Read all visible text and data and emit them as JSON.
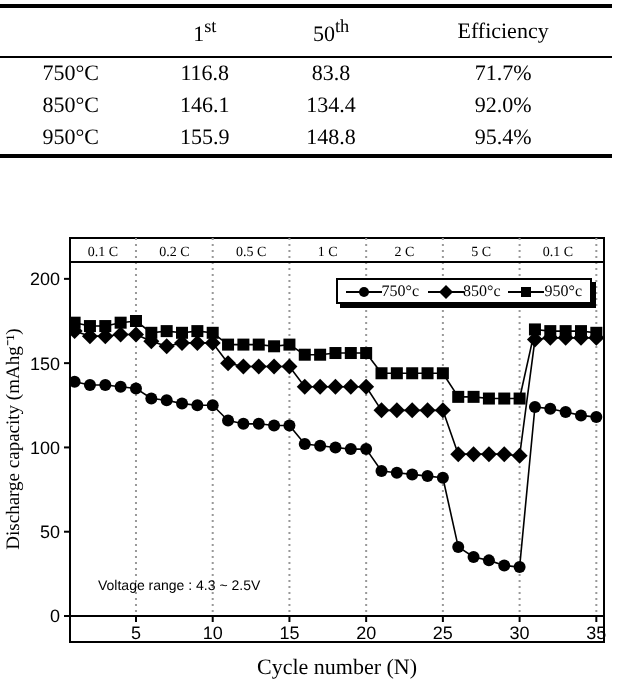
{
  "chart_data": [
    {
      "type": "other",
      "categories": [
        "1$^{st}$",
        "50$^{th}$",
        "Efficiency"
      ],
      "y_categories": [
        "750°C",
        "850°C",
        "950°C"
      ],
      "cell_labels": [
        [
          "116.8",
          "83.8",
          "71.7%"
        ],
        [
          "146.1",
          "134.4",
          "92.0%"
        ],
        [
          "155.9",
          "148.8",
          "95.4%"
        ]
      ]
    },
    {
      "type": "line",
      "xlabel": "Cycle number (N)",
      "ylabel": "Discharge capacity (mAhg⁻¹)",
      "x": [
        1,
        2,
        3,
        4,
        5,
        6,
        7,
        8,
        9,
        10,
        11,
        12,
        13,
        14,
        15,
        16,
        17,
        18,
        19,
        20,
        21,
        22,
        23,
        24,
        25,
        26,
        27,
        28,
        29,
        30,
        31,
        32,
        33,
        34,
        35
      ],
      "series": [
        {
          "name": "750°c",
          "color": "#000000",
          "marker": "circle",
          "values": [
            139,
            137,
            137,
            136,
            135,
            129,
            128,
            126,
            125,
            125,
            116,
            114,
            114,
            113,
            113,
            102,
            101,
            100,
            99,
            99,
            86,
            85,
            84,
            83,
            82,
            41,
            35,
            33,
            30,
            29,
            124,
            123,
            121,
            119,
            118
          ]
        },
        {
          "name": "850°c",
          "color": "#000000",
          "marker": "diamond",
          "values": [
            169,
            166,
            166,
            167,
            167,
            163,
            160,
            162,
            162,
            162,
            150,
            148,
            148,
            148,
            148,
            136,
            136,
            136,
            136,
            136,
            122,
            122,
            122,
            122,
            122,
            96,
            96,
            96,
            96,
            95,
            164,
            165,
            165,
            165,
            165
          ]
        },
        {
          "name": "950°c",
          "color": "#000000",
          "marker": "square",
          "values": [
            174,
            172,
            172,
            174,
            175,
            168,
            169,
            168,
            169,
            168,
            161,
            161,
            161,
            160,
            161,
            155,
            155,
            156,
            156,
            156,
            144,
            144,
            144,
            144,
            144,
            130,
            130,
            129,
            129,
            129,
            170,
            169,
            169,
            169,
            168
          ]
        }
      ],
      "xlim": [
        0.7,
        35.5
      ],
      "xticks": [
        5,
        10,
        15,
        20,
        25,
        30,
        35
      ],
      "ylim": [
        0,
        210
      ],
      "yticks": [
        0,
        50,
        100,
        150,
        200
      ],
      "grid": "x",
      "legend": "top right",
      "line_style": "solid",
      "annotations": [
        "0.1 C",
        "0.2 C",
        "0.5 C",
        "1 C",
        "2 C",
        "5 C",
        "0.1 C",
        "Voltage range : 4.3 ~ 2.5V"
      ]
    }
  ]
}
